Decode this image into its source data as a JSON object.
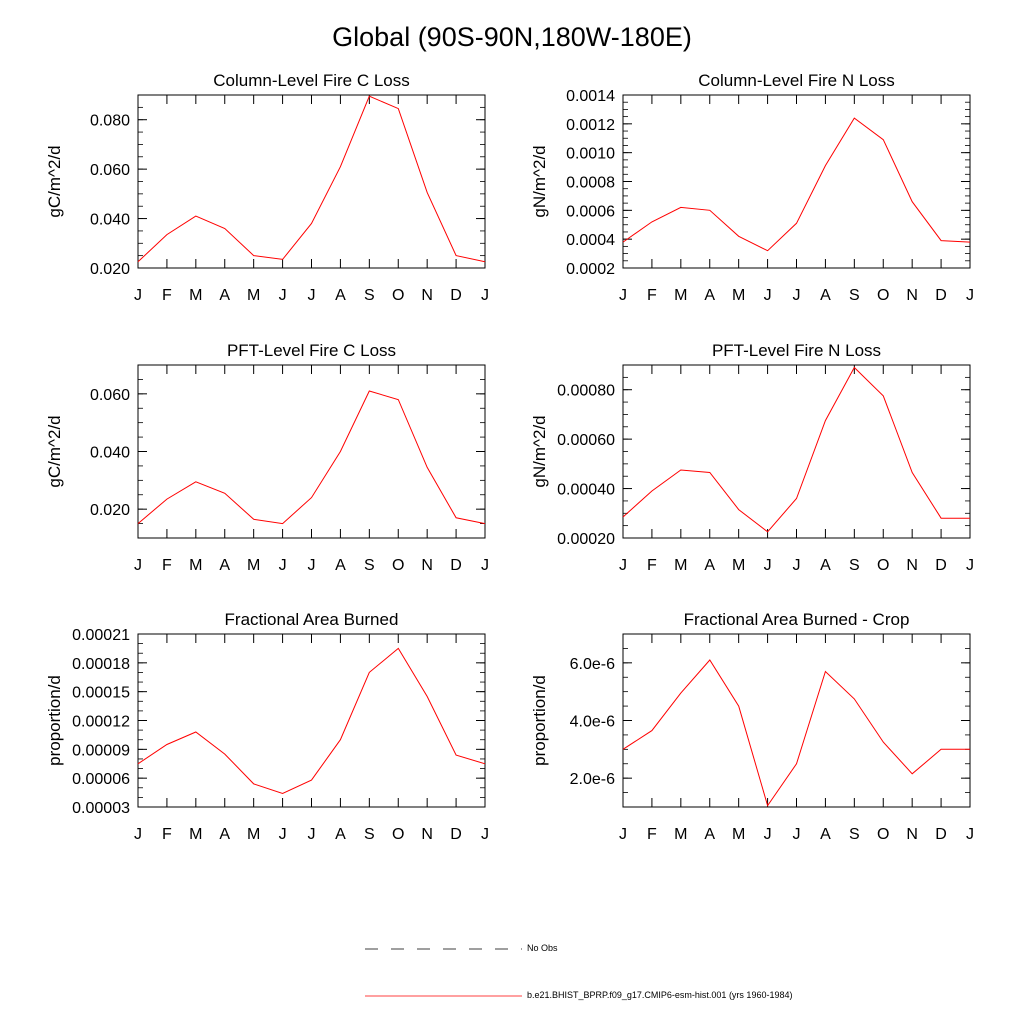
{
  "title": "Global (90S-90N,180W-180E)",
  "legend": {
    "items": [
      {
        "label": "No Obs",
        "style": "dashed",
        "color": "#000000"
      },
      {
        "label": "b.e21.BHIST_BPRP.f09_g17.CMIP6-esm-hist.001 (yrs 1960-1984)",
        "style": "solid",
        "color": "#ff0000"
      }
    ]
  },
  "series_color": "#ff0000",
  "chart_data": [
    {
      "type": "line",
      "title": "Column-Level Fire C Loss",
      "ylabel": "gC/m^2/d",
      "categories": [
        "J",
        "F",
        "M",
        "A",
        "M",
        "J",
        "J",
        "A",
        "S",
        "O",
        "N",
        "D",
        "J"
      ],
      "values": [
        0.0225,
        0.0335,
        0.041,
        0.036,
        0.025,
        0.0235,
        0.038,
        0.061,
        0.0895,
        0.0845,
        0.0505,
        0.025,
        0.0225
      ],
      "ylim": [
        0.02,
        0.09
      ],
      "yticks": [
        0.02,
        0.04,
        0.06,
        0.08
      ],
      "yticklabels": [
        "0.020",
        "0.040",
        "0.060",
        "0.080"
      ],
      "yminor": 0.005
    },
    {
      "type": "line",
      "title": "Column-Level Fire N Loss",
      "ylabel": "gN/m^2/d",
      "categories": [
        "J",
        "F",
        "M",
        "A",
        "M",
        "J",
        "J",
        "A",
        "S",
        "O",
        "N",
        "D",
        "J"
      ],
      "values": [
        0.00038,
        0.00052,
        0.00062,
        0.0006,
        0.00042,
        0.00032,
        0.00051,
        0.00091,
        0.00124,
        0.00109,
        0.00066,
        0.00039,
        0.00038
      ],
      "ylim": [
        0.0002,
        0.0014
      ],
      "yticks": [
        0.0002,
        0.0004,
        0.0006,
        0.0008,
        0.001,
        0.0012,
        0.0014
      ],
      "yticklabels": [
        "0.0002",
        "0.0004",
        "0.0006",
        "0.0008",
        "0.0010",
        "0.0012",
        "0.0014"
      ],
      "yminor": 5e-05
    },
    {
      "type": "line",
      "title": "PFT-Level Fire C Loss",
      "ylabel": "gC/m^2/d",
      "categories": [
        "J",
        "F",
        "M",
        "A",
        "M",
        "J",
        "J",
        "A",
        "S",
        "O",
        "N",
        "D",
        "J"
      ],
      "values": [
        0.015,
        0.0235,
        0.0295,
        0.0255,
        0.0165,
        0.015,
        0.024,
        0.04,
        0.061,
        0.058,
        0.0345,
        0.017,
        0.015
      ],
      "ylim": [
        0.01,
        0.07
      ],
      "yticks": [
        0.02,
        0.04,
        0.06
      ],
      "yticklabels": [
        "0.020",
        "0.040",
        "0.060"
      ],
      "yminor": 0.005
    },
    {
      "type": "line",
      "title": "PFT-Level Fire N Loss",
      "ylabel": "gN/m^2/d",
      "categories": [
        "J",
        "F",
        "M",
        "A",
        "M",
        "J",
        "J",
        "A",
        "S",
        "O",
        "N",
        "D",
        "J"
      ],
      "values": [
        0.000285,
        0.00039,
        0.000475,
        0.000465,
        0.000315,
        0.000225,
        0.00036,
        0.000675,
        0.00089,
        0.000775,
        0.000465,
        0.00028,
        0.00028
      ],
      "ylim": [
        0.0002,
        0.0009
      ],
      "yticks": [
        0.0002,
        0.0004,
        0.0006,
        0.0008
      ],
      "yticklabels": [
        "0.00020",
        "0.00040",
        "0.00060",
        "0.00080"
      ],
      "yminor": 5e-05
    },
    {
      "type": "line",
      "title": "Fractional Area Burned",
      "ylabel": "proportion/d",
      "categories": [
        "J",
        "F",
        "M",
        "A",
        "M",
        "J",
        "J",
        "A",
        "S",
        "O",
        "N",
        "D",
        "J"
      ],
      "values": [
        7.5e-05,
        9.5e-05,
        0.000108,
        8.5e-05,
        5.4e-05,
        4.4e-05,
        5.8e-05,
        0.0001,
        0.00017,
        0.000195,
        0.000145,
        8.4e-05,
        7.5e-05
      ],
      "ylim": [
        3e-05,
        0.00021
      ],
      "yticks": [
        3e-05,
        6e-05,
        9e-05,
        0.00012,
        0.00015,
        0.00018,
        0.00021
      ],
      "yticklabels": [
        "0.00003",
        "0.00006",
        "0.00009",
        "0.00012",
        "0.00015",
        "0.00018",
        "0.00021"
      ],
      "yminor": 1e-05
    },
    {
      "type": "line",
      "title": "Fractional Area Burned - Crop",
      "ylabel": "proportion/d",
      "categories": [
        "J",
        "F",
        "M",
        "A",
        "M",
        "J",
        "J",
        "A",
        "S",
        "O",
        "N",
        "D",
        "J"
      ],
      "values": [
        3e-06,
        3.65e-06,
        4.95e-06,
        6.1e-06,
        4.5e-06,
        1.05e-06,
        2.5e-06,
        5.7e-06,
        4.75e-06,
        3.25e-06,
        2.15e-06,
        3e-06,
        3e-06
      ],
      "ylim": [
        1e-06,
        7e-06
      ],
      "yticks": [
        2e-06,
        4e-06,
        6e-06
      ],
      "yticklabels": [
        "2.0e-6",
        "4.0e-6",
        "6.0e-6"
      ],
      "yminor": 5e-07
    }
  ]
}
